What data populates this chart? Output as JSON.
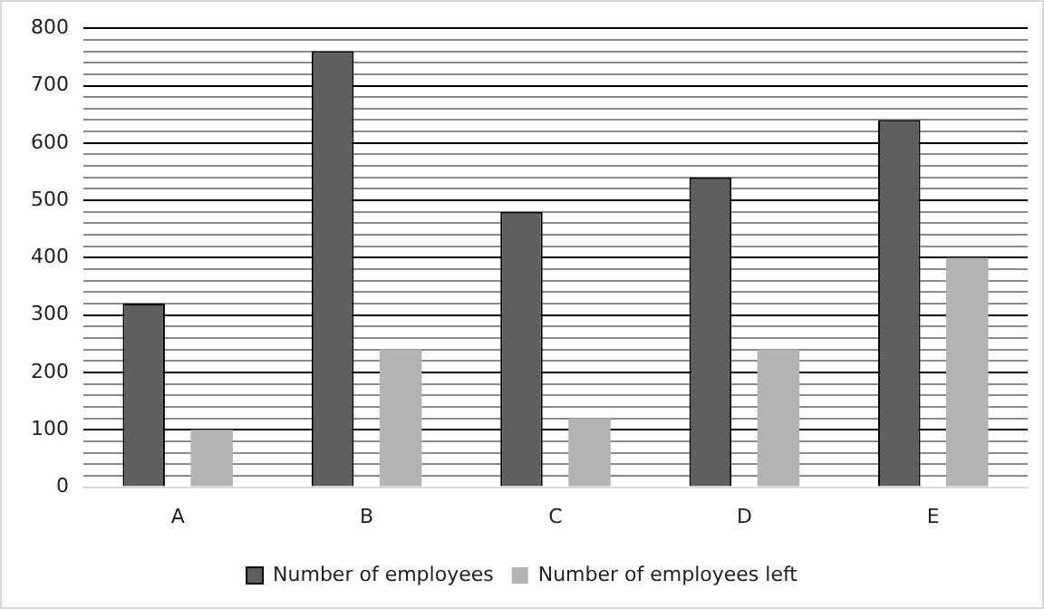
{
  "chart_data": {
    "type": "bar",
    "categories": [
      "A",
      "B",
      "C",
      "D",
      "E"
    ],
    "series": [
      {
        "name": "Number of employees",
        "color": "#5f5f5f",
        "values": [
          320,
          760,
          480,
          540,
          640
        ]
      },
      {
        "name": "Number of employees left",
        "color": "#b3b3b3",
        "values": [
          100,
          240,
          120,
          240,
          400
        ]
      }
    ],
    "ylim": [
      0,
      800
    ],
    "yticks": [
      0,
      {
        "value": 20,
        "label": null
      },
      {
        "value": 40,
        "label": null
      },
      {
        "value": 60,
        "label": null
      },
      {
        "value": 80,
        "label": null
      },
      100,
      {
        "value": 120,
        "label": null
      },
      {
        "value": 140,
        "label": null
      },
      {
        "value": 160,
        "label": null
      },
      {
        "value": 180,
        "label": null
      },
      200,
      {
        "value": 220,
        "label": null
      },
      {
        "value": 240,
        "label": null
      },
      {
        "value": 260,
        "label": null
      },
      {
        "value": 280,
        "label": null
      },
      300,
      {
        "value": 320,
        "label": null
      },
      {
        "value": 340,
        "label": null
      },
      {
        "value": 360,
        "label": null
      },
      {
        "value": 380,
        "label": null
      },
      400,
      {
        "value": 420,
        "label": null
      },
      {
        "value": 440,
        "label": null
      },
      {
        "value": 460,
        "label": null
      },
      {
        "value": 480,
        "label": null
      },
      500,
      {
        "value": 520,
        "label": null
      },
      {
        "value": 540,
        "label": null
      },
      {
        "value": 560,
        "label": null
      },
      {
        "value": 580,
        "label": null
      },
      600,
      {
        "value": 620,
        "label": null
      },
      {
        "value": 640,
        "label": null
      },
      {
        "value": 660,
        "label": null
      },
      {
        "value": 680,
        "label": null
      },
      700,
      {
        "value": 720,
        "label": null
      },
      {
        "value": 740,
        "label": null
      },
      {
        "value": 760,
        "label": null
      },
      {
        "value": 780,
        "label": null
      },
      800
    ],
    "grid": true,
    "legend": "bottom"
  }
}
